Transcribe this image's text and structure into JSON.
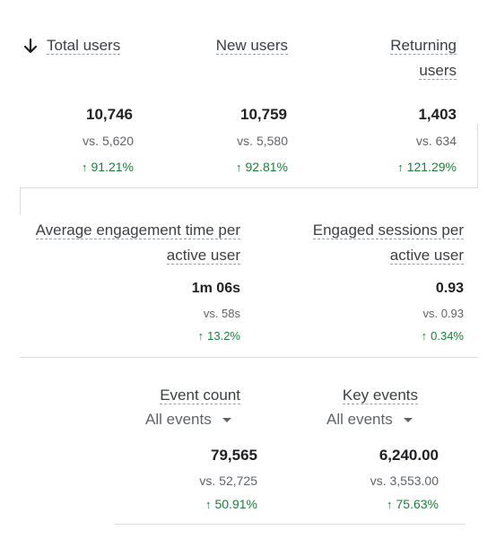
{
  "row1": {
    "total_users": {
      "label": "Total users",
      "value": "10,746",
      "vs": "vs. 5,620",
      "change": "91.21%"
    },
    "new_users": {
      "label": "New users",
      "value": "10,759",
      "vs": "vs. 5,580",
      "change": "92.81%"
    },
    "returning_users": {
      "label_line1": "Returning",
      "label_line2": "users",
      "value": "1,403",
      "vs": "vs. 634",
      "change": "121.29%"
    }
  },
  "row2": {
    "avg_engagement": {
      "label_line1": "Average engagement time per",
      "label_line2": "active user",
      "value": "1m 06s",
      "vs": "vs. 58s",
      "change": "13.2%"
    },
    "engaged_sessions": {
      "label_line1": "Engaged sessions per",
      "label_line2": "active user",
      "value": "0.93",
      "vs": "vs. 0.93",
      "change": "0.34%"
    }
  },
  "row3": {
    "event_count": {
      "label": "Event count",
      "filter": "All events",
      "value": "79,565",
      "vs": "vs. 52,725",
      "change": "50.91%"
    },
    "key_events": {
      "label": "Key events",
      "filter": "All events",
      "value": "6,240.00",
      "vs": "vs. 3,553.00",
      "change": "75.63%"
    }
  },
  "icons": {
    "sort": "arrow-down-icon",
    "up": "arrow-up-icon",
    "dropdown": "caret-down-icon"
  },
  "colors": {
    "positive": "#188038",
    "text": "#3c4043",
    "muted": "#5f6368",
    "divider": "#dadce0"
  }
}
